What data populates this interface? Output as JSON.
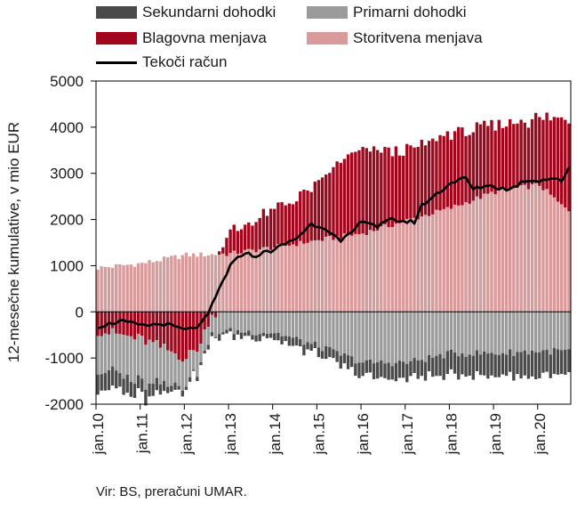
{
  "legend": {
    "secondary": "Sekundarni dohodki",
    "primary": "Primarni dohodki",
    "goods": "Blagovna menjava",
    "services": "Storitvena menjava",
    "current": "Tekoči račun"
  },
  "source": "Vir: BS, preračuni UMAR.",
  "colors": {
    "secondary": "#4a4a4a",
    "primary": "#9b9b9b",
    "goods": "#a1061c",
    "services": "#d99a9c",
    "current": "#000000"
  },
  "chart_data": {
    "type": "bar",
    "title": "",
    "ylabel": "12-mesečne kumulative, v mio EUR",
    "xlabel": "",
    "ylim": [
      -2000,
      5000
    ],
    "yticks": [
      -2000,
      -1000,
      0,
      1000,
      2000,
      3000,
      4000,
      5000
    ],
    "xticks": [
      "jan.10",
      "jan.11",
      "jan.12",
      "jan.13",
      "jan.14",
      "jan.15",
      "jan.16",
      "jan.17",
      "jan.18",
      "jan.19",
      "jan.20"
    ],
    "legend_position": "top",
    "anchors": {
      "services": [
        [
          0,
          950
        ],
        [
          12,
          1050
        ],
        [
          24,
          1230
        ],
        [
          30,
          1240
        ],
        [
          36,
          1260
        ],
        [
          48,
          1400
        ],
        [
          60,
          1550
        ],
        [
          72,
          1700
        ],
        [
          84,
          1980
        ],
        [
          96,
          2250
        ],
        [
          108,
          2600
        ],
        [
          120,
          2750
        ],
        [
          126,
          2300
        ],
        [
          128,
          2200
        ]
      ],
      "goods": [
        [
          0,
          -400
        ],
        [
          12,
          -600
        ],
        [
          24,
          -1000
        ],
        [
          28,
          -700
        ],
        [
          30,
          -200
        ],
        [
          33,
          100
        ],
        [
          36,
          450
        ],
        [
          48,
          800
        ],
        [
          60,
          1200
        ],
        [
          66,
          1650
        ],
        [
          72,
          1800
        ],
        [
          84,
          1500
        ],
        [
          96,
          1620
        ],
        [
          108,
          1420
        ],
        [
          120,
          1450
        ],
        [
          128,
          2000
        ]
      ],
      "primary": [
        [
          0,
          -800
        ],
        [
          12,
          -950
        ],
        [
          24,
          -550
        ],
        [
          28,
          -450
        ],
        [
          30,
          -430
        ],
        [
          36,
          -420
        ],
        [
          48,
          -450
        ],
        [
          60,
          -750
        ],
        [
          72,
          -1100
        ],
        [
          84,
          -1100
        ],
        [
          96,
          -900
        ],
        [
          108,
          -900
        ],
        [
          120,
          -850
        ],
        [
          128,
          -850
        ]
      ],
      "secondary": [
        [
          0,
          -400
        ],
        [
          12,
          -300
        ],
        [
          24,
          -100
        ],
        [
          28,
          -70
        ],
        [
          30,
          -70
        ],
        [
          36,
          -100
        ],
        [
          48,
          -120
        ],
        [
          60,
          -200
        ],
        [
          72,
          -300
        ],
        [
          84,
          -350
        ],
        [
          96,
          -450
        ],
        [
          108,
          -500
        ],
        [
          120,
          -550
        ],
        [
          128,
          -480
        ]
      ],
      "current": [
        [
          0,
          -320
        ],
        [
          6,
          -200
        ],
        [
          12,
          -300
        ],
        [
          18,
          -260
        ],
        [
          24,
          -400
        ],
        [
          28,
          -280
        ],
        [
          30,
          -50
        ],
        [
          33,
          500
        ],
        [
          36,
          1000
        ],
        [
          40,
          1300
        ],
        [
          42,
          1200
        ],
        [
          44,
          1250
        ],
        [
          48,
          1350
        ],
        [
          54,
          1600
        ],
        [
          58,
          1900
        ],
        [
          62,
          1820
        ],
        [
          66,
          1500
        ],
        [
          70,
          1800
        ],
        [
          72,
          2000
        ],
        [
          76,
          1850
        ],
        [
          80,
          2000
        ],
        [
          84,
          1950
        ],
        [
          86,
          1950
        ],
        [
          88,
          2300
        ],
        [
          92,
          2550
        ],
        [
          96,
          2800
        ],
        [
          100,
          2900
        ],
        [
          102,
          2650
        ],
        [
          106,
          2750
        ],
        [
          108,
          2700
        ],
        [
          112,
          2650
        ],
        [
          116,
          2850
        ],
        [
          120,
          2850
        ],
        [
          124,
          2900
        ],
        [
          126,
          2800
        ],
        [
          128,
          3150
        ]
      ]
    }
  }
}
